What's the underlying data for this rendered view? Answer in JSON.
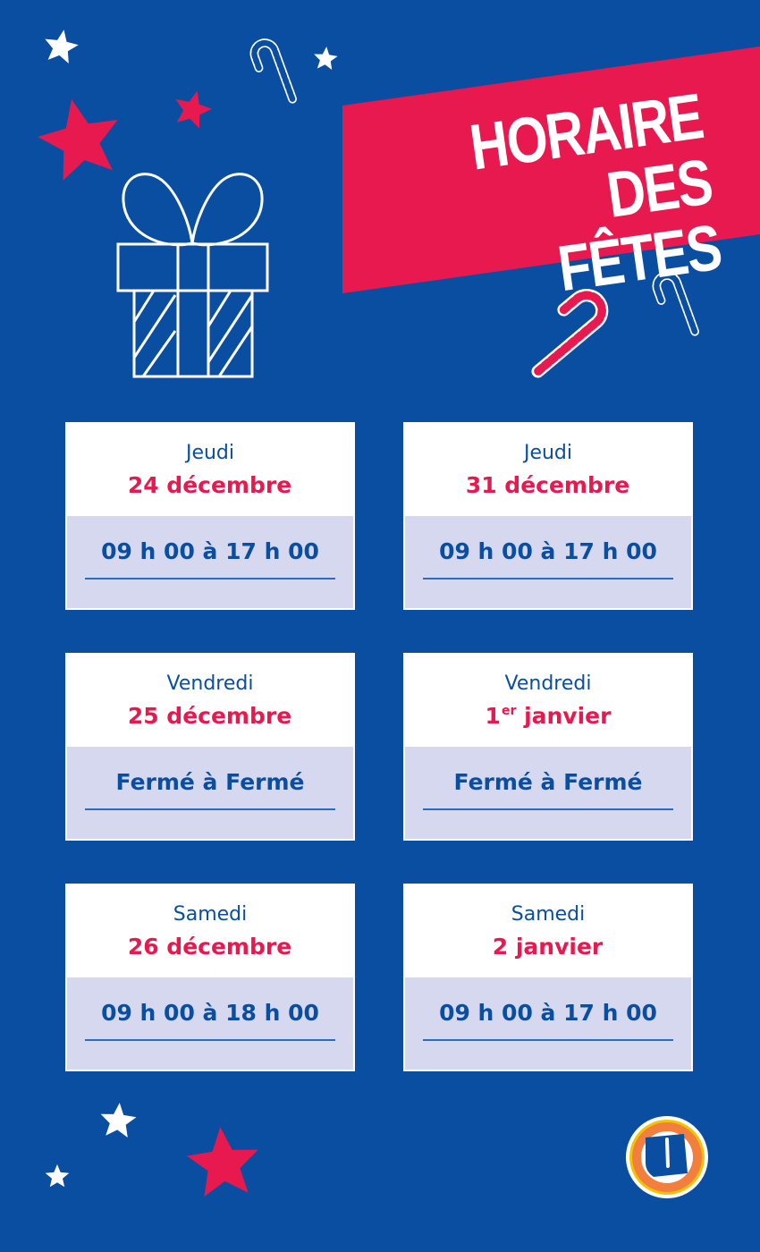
{
  "title": {
    "line1": "HORAIRE",
    "line2": "DES FÊTES"
  },
  "colors": {
    "background": "#0a4ea2",
    "accent": "#e8194f",
    "card_bottom": "#d5d8ee",
    "text_blue": "#0a4ea2"
  },
  "cards": [
    {
      "day": "Jeudi",
      "date_main": "24 décembre",
      "date_sup": "",
      "date_rest": "",
      "hours": "09 h 00 à 17 h 00"
    },
    {
      "day": "Jeudi",
      "date_main": "31 décembre",
      "date_sup": "",
      "date_rest": "",
      "hours": "09 h 00 à 17 h 00"
    },
    {
      "day": "Vendredi",
      "date_main": "25 décembre",
      "date_sup": "",
      "date_rest": "",
      "hours": "Fermé à Fermé"
    },
    {
      "day": "Vendredi",
      "date_main": "1",
      "date_sup": "er",
      "date_rest": " janvier",
      "hours": "Fermé à Fermé"
    },
    {
      "day": "Samedi",
      "date_main": "26 décembre",
      "date_sup": "",
      "date_rest": "",
      "hours": "09 h 00 à 18 h 00"
    },
    {
      "day": "Samedi",
      "date_main": "2 janvier",
      "date_sup": "",
      "date_rest": "",
      "hours": "09 h 00 à 17 h 00"
    }
  ],
  "icons": [
    "star-icon",
    "candy-cane-icon",
    "gift-icon",
    "logo-u"
  ]
}
